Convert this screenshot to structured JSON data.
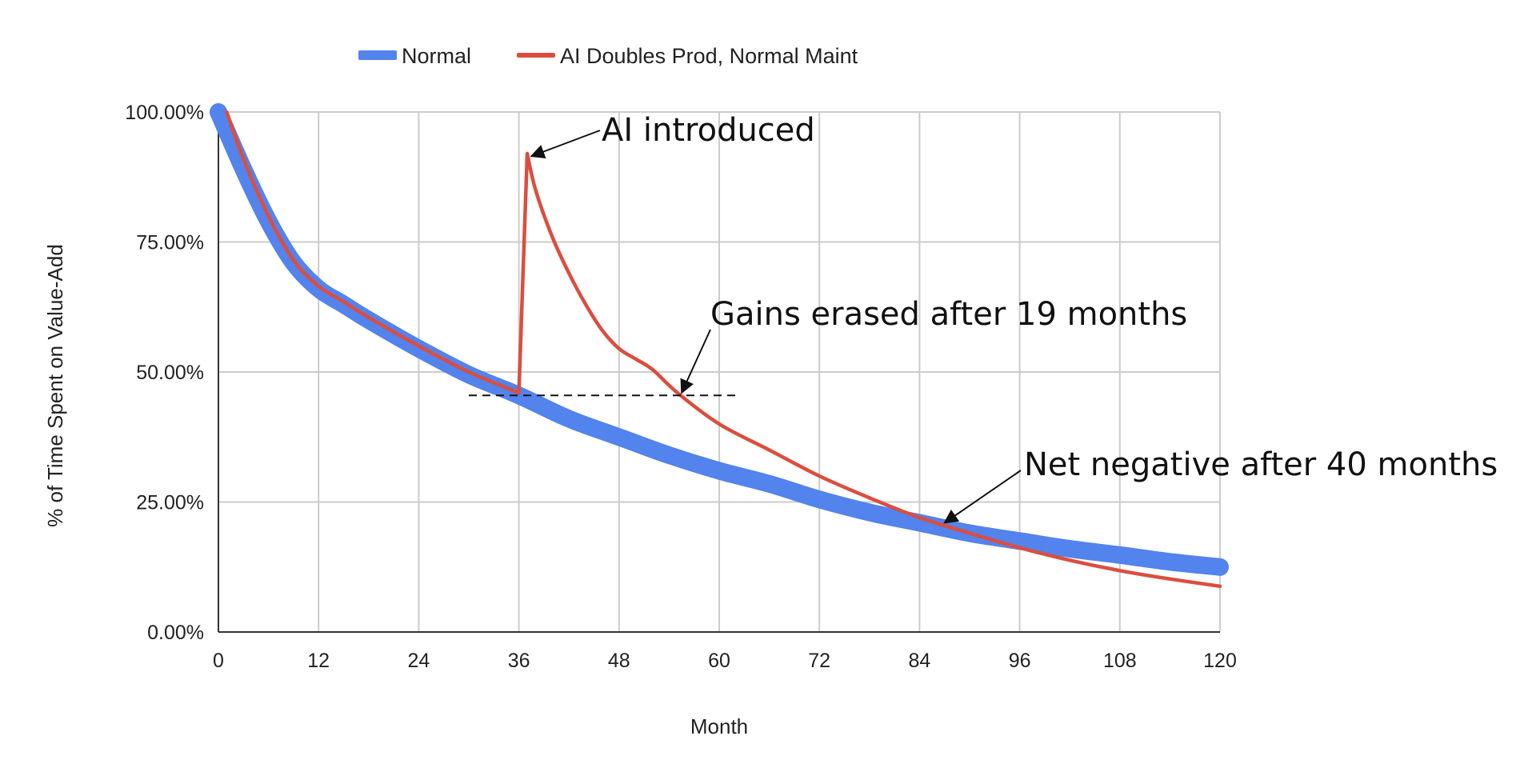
{
  "chart_data": {
    "type": "line",
    "title": "",
    "xlabel": "Month",
    "ylabel": "% of Time Spent on Value-Add",
    "xlim": [
      0,
      120
    ],
    "ylim": [
      0,
      100
    ],
    "x_ticks": [
      0,
      12,
      24,
      36,
      48,
      60,
      72,
      84,
      96,
      108,
      120
    ],
    "x_tick_labels": [
      "0",
      "12",
      "24",
      "36",
      "48",
      "60",
      "72",
      "84",
      "96",
      "108",
      "120"
    ],
    "y_ticks": [
      0,
      25,
      50,
      75,
      100
    ],
    "y_tick_labels": [
      "0.00%",
      "25.00%",
      "50.00%",
      "75.00%",
      "100.00%"
    ],
    "grid": true,
    "legend": {
      "position": "top-center"
    },
    "series": [
      {
        "name": "Normal",
        "color": "#5383ec",
        "points": [
          [
            0,
            100
          ],
          [
            3,
            89
          ],
          [
            6,
            79
          ],
          [
            9,
            71
          ],
          [
            12,
            66
          ],
          [
            15,
            63
          ],
          [
            18,
            60
          ],
          [
            24,
            54.5
          ],
          [
            30,
            49.5
          ],
          [
            36,
            45.5
          ],
          [
            42,
            41
          ],
          [
            48,
            37.5
          ],
          [
            54,
            34
          ],
          [
            60,
            31
          ],
          [
            66,
            28.5
          ],
          [
            72,
            25.5
          ],
          [
            78,
            23
          ],
          [
            84,
            21
          ],
          [
            90,
            19
          ],
          [
            96,
            17.5
          ],
          [
            102,
            16
          ],
          [
            108,
            14.8
          ],
          [
            114,
            13.5
          ],
          [
            120,
            12.5
          ]
        ]
      },
      {
        "name": "AI Doubles Prod, Normal Maint",
        "color": "#db4e3f",
        "points": [
          [
            1,
            100
          ],
          [
            3,
            91
          ],
          [
            6,
            80
          ],
          [
            9,
            71.5
          ],
          [
            12,
            66.5
          ],
          [
            15,
            63.5
          ],
          [
            18,
            60.5
          ],
          [
            24,
            55
          ],
          [
            30,
            50
          ],
          [
            36,
            46
          ],
          [
            37,
            92
          ],
          [
            38,
            85
          ],
          [
            40,
            76
          ],
          [
            42,
            69
          ],
          [
            44,
            63
          ],
          [
            46,
            58
          ],
          [
            48,
            54.5
          ],
          [
            50,
            52.5
          ],
          [
            52,
            50.5
          ],
          [
            55,
            46
          ],
          [
            60,
            40
          ],
          [
            66,
            35
          ],
          [
            72,
            30
          ],
          [
            78,
            25.8
          ],
          [
            84,
            22
          ],
          [
            90,
            19
          ],
          [
            96,
            16.2
          ],
          [
            102,
            13.8
          ],
          [
            108,
            11.8
          ],
          [
            114,
            10.2
          ],
          [
            120,
            8.8
          ]
        ]
      }
    ],
    "reference_line": {
      "y": 45.5,
      "x_from": 30,
      "x_to": 62,
      "style": "dashed"
    },
    "annotations": [
      {
        "text": "AI introduced",
        "target": [
          37.5,
          91.5
        ]
      },
      {
        "text": "Gains erased after 19 months",
        "target": [
          55.5,
          46
        ]
      },
      {
        "text": "Net negative after 40 months",
        "target": [
          87,
          21
        ]
      }
    ]
  }
}
